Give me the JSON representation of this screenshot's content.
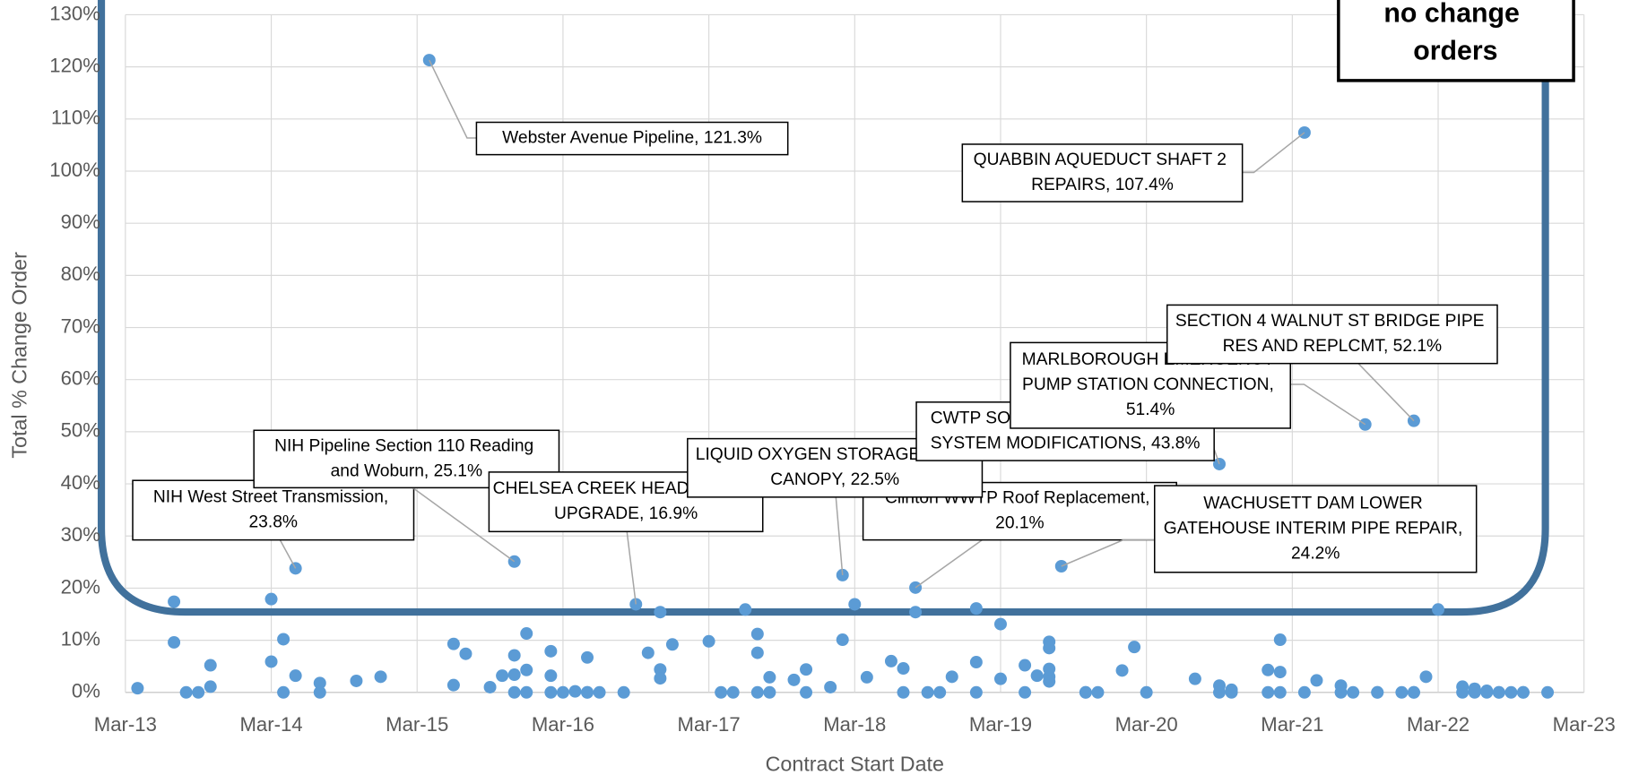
{
  "chart_data": {
    "type": "scatter",
    "x_label": "Contract Start Date",
    "y_label": "Total % Change Order",
    "note": "no change orders",
    "color": "#5b9bd5",
    "grid": true,
    "xlim": [
      "2013-03",
      "2023-03"
    ],
    "xticks": [
      {
        "value": "2013-03",
        "label": "Mar-13"
      },
      {
        "value": "2014-03",
        "label": "Mar-14"
      },
      {
        "value": "2015-03",
        "label": "Mar-15"
      },
      {
        "value": "2016-03",
        "label": "Mar-16"
      },
      {
        "value": "2017-03",
        "label": "Mar-17"
      },
      {
        "value": "2018-03",
        "label": "Mar-18"
      },
      {
        "value": "2019-03",
        "label": "Mar-19"
      },
      {
        "value": "2020-03",
        "label": "Mar-20"
      },
      {
        "value": "2021-03",
        "label": "Mar-21"
      },
      {
        "value": "2022-03",
        "label": "Mar-22"
      },
      {
        "value": "2023-03",
        "label": "Mar-23"
      }
    ],
    "ylim": [
      0,
      130
    ],
    "yticks": [
      {
        "value": 0,
        "label": "0%"
      },
      {
        "value": 10,
        "label": "10%"
      },
      {
        "value": 20,
        "label": "20%"
      },
      {
        "value": 30,
        "label": "30%"
      },
      {
        "value": 40,
        "label": "40%"
      },
      {
        "value": 50,
        "label": "50%"
      },
      {
        "value": 60,
        "label": "60%"
      },
      {
        "value": 70,
        "label": "70%"
      },
      {
        "value": 80,
        "label": "80%"
      },
      {
        "value": 90,
        "label": "90%"
      },
      {
        "value": 100,
        "label": "100%"
      },
      {
        "value": 110,
        "label": "110%"
      },
      {
        "value": 120,
        "label": "120%"
      },
      {
        "value": 130,
        "label": "130%"
      }
    ],
    "x": [
      "2013-04",
      "2013-07",
      "2013-07",
      "2013-08",
      "2013-09",
      "2013-10",
      "2013-10",
      "2014-03",
      "2014-03",
      "2014-04",
      "2014-04",
      "2014-05",
      "2014-05",
      "2014-07",
      "2014-07",
      "2014-10",
      "2014-12",
      "2015-04",
      "2015-06",
      "2015-06",
      "2015-07",
      "2015-09",
      "2015-10",
      "2015-11",
      "2015-11",
      "2015-11",
      "2015-11",
      "2015-12",
      "2015-12",
      "2015-12",
      "2016-02",
      "2016-02",
      "2016-02",
      "2016-03",
      "2016-04",
      "2016-05",
      "2016-05",
      "2016-05",
      "2016-06",
      "2016-08",
      "2016-09",
      "2016-10",
      "2016-11",
      "2016-11",
      "2016-11",
      "2016-12",
      "2017-03",
      "2017-04",
      "2017-05",
      "2017-06",
      "2017-07",
      "2017-07",
      "2017-07",
      "2017-08",
      "2017-08",
      "2017-10",
      "2017-11",
      "2017-11",
      "2018-01",
      "2018-02",
      "2018-02",
      "2018-03",
      "2018-04",
      "2018-06",
      "2018-07",
      "2018-07",
      "2018-08",
      "2018-08",
      "2018-09",
      "2018-10",
      "2018-11",
      "2019-01",
      "2019-01",
      "2019-01",
      "2019-03",
      "2019-03",
      "2019-05",
      "2019-05",
      "2019-06",
      "2019-07",
      "2019-07",
      "2019-07",
      "2019-07",
      "2019-07",
      "2019-08",
      "2019-10",
      "2019-10",
      "2019-11",
      "2020-01",
      "2020-02",
      "2020-03",
      "2020-07",
      "2020-09",
      "2020-09",
      "2020-09",
      "2020-10",
      "2020-10",
      "2021-01",
      "2021-01",
      "2021-02",
      "2021-02",
      "2021-02",
      "2021-04",
      "2021-04",
      "2021-05",
      "2021-07",
      "2021-07",
      "2021-08",
      "2021-09",
      "2021-10",
      "2021-10",
      "2021-12",
      "2022-01",
      "2022-01",
      "2022-01",
      "2022-02",
      "2022-03",
      "2022-05",
      "2022-05",
      "2022-06",
      "2022-06",
      "2022-06",
      "2022-07",
      "2022-07",
      "2022-08",
      "2022-08",
      "2022-09",
      "2022-10",
      "2022-10",
      "2022-12"
    ],
    "values": [
      0.8,
      17.4,
      9.6,
      0,
      0,
      5.2,
      1.1,
      17.9,
      5.9,
      10.2,
      0,
      23.8,
      3.2,
      1.8,
      0,
      2.2,
      3.0,
      121.3,
      9.3,
      1.4,
      7.4,
      1.0,
      3.2,
      25.1,
      7.1,
      3.4,
      0,
      4.3,
      11.3,
      0,
      7.9,
      3.2,
      0,
      0,
      0.2,
      6.7,
      0,
      0,
      0,
      0,
      16.9,
      7.6,
      15.4,
      4.4,
      2.7,
      9.2,
      9.8,
      0,
      0,
      15.9,
      11.2,
      7.6,
      0,
      2.9,
      0,
      2.4,
      0,
      4.4,
      1.0,
      22.5,
      10.1,
      16.9,
      2.9,
      6.0,
      4.6,
      0,
      20.1,
      15.4,
      0,
      0,
      3.0,
      16.1,
      0,
      5.8,
      13.1,
      2.6,
      5.2,
      0,
      3.2,
      2.1,
      3.0,
      9.7,
      8.5,
      4.5,
      24.2,
      0,
      0,
      0,
      4.2,
      8.7,
      0,
      2.6,
      1.3,
      43.8,
      0,
      0.5,
      0,
      0,
      4.3,
      10.1,
      3.9,
      0,
      107.4,
      0,
      2.3,
      0,
      1.3,
      0,
      51.4,
      0,
      0,
      0,
      0,
      52.1,
      0,
      3.0,
      15.9,
      1.1,
      0,
      0.3,
      0.7,
      0,
      0.3,
      0,
      0,
      0,
      0,
      0,
      0,
      0
    ],
    "value_labels": [
      null,
      null,
      null,
      null,
      null,
      null,
      null,
      null,
      null,
      null,
      null,
      "NIH West Street Transmission, 23.8%",
      null,
      null,
      null,
      null,
      null,
      "Webster Avenue Pipeline, 121.3%",
      null,
      null,
      null,
      null,
      null,
      "NIH Pipeline Section 110 Reading and Woburn, 25.1%",
      null,
      null,
      null,
      null,
      null,
      null,
      null,
      null,
      null,
      null,
      null,
      null,
      null,
      null,
      null,
      null,
      "CHELSEA CREEK HEADWORKS UPGRADE, 16.9%",
      null,
      null,
      null,
      null,
      null,
      null,
      null,
      null,
      null,
      null,
      null,
      null,
      null,
      null,
      null,
      null,
      null,
      null,
      "LIQUID OXYGEN STORAGE TANK CANOPY, 22.5%",
      null,
      null,
      null,
      null,
      null,
      null,
      "Clinton WWTP Roof Replacement, 20.1%",
      null,
      null,
      null,
      null,
      null,
      null,
      null,
      null,
      null,
      null,
      null,
      null,
      null,
      null,
      null,
      null,
      null,
      "WACHUSETT DAM LOWER GATEHOUSE INTERIM PIPE REPAIR, 24.2%",
      null,
      null,
      null,
      null,
      null,
      null,
      null,
      null,
      "CWTP SODIUM HYPOCHLORITE SYSTEM MODIFICATIONS, 43.8%",
      null,
      null,
      null,
      null,
      null,
      null,
      null,
      null,
      "QUABBIN AQUEDUCT SHAFT 2 REPAIRS, 107.4%",
      null,
      null,
      null,
      null,
      null,
      "MARLBOROUGH EMERGENCY PUMP STATION CONNECTION, 51.4%",
      null,
      null,
      null,
      null,
      "SECTION 4 WALNUT ST BRIDGE PIPE RES AND REPLCMT, 52.1%",
      null,
      null,
      null,
      null,
      null,
      null,
      null,
      null,
      null,
      null,
      null,
      null,
      null,
      null,
      null,
      null
    ]
  }
}
